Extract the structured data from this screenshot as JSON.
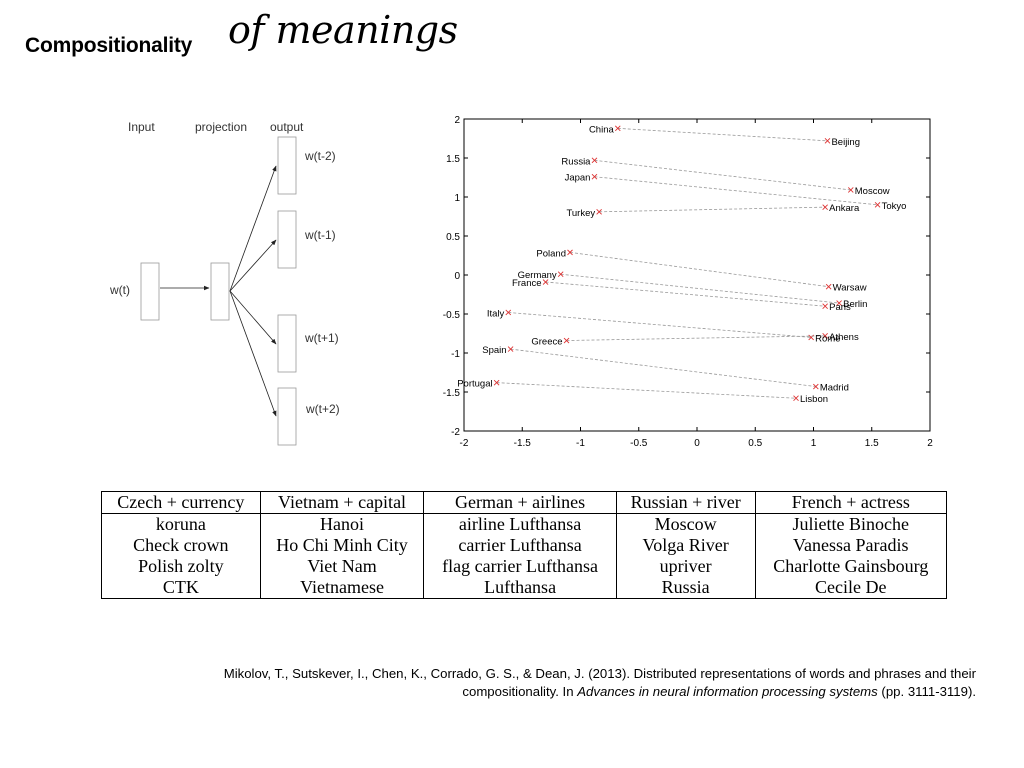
{
  "title": {
    "bold": "Compositionality",
    "script": "of meanings"
  },
  "diagram": {
    "labels": {
      "input": "Input",
      "projection": "projection",
      "output": "output",
      "input_word": "w(t)"
    },
    "outputs": [
      "w(t-2)",
      "w(t-1)",
      "w(t+1)",
      "w(t+2)"
    ]
  },
  "chart_data": {
    "type": "scatter",
    "xlim": [
      -2,
      2
    ],
    "ylim": [
      -2,
      2
    ],
    "xticks": [
      "-2",
      "-1.5",
      "-1",
      "-0.5",
      "0",
      "0.5",
      "1",
      "1.5",
      "2"
    ],
    "yticks": [
      "2",
      "1.5",
      "1",
      "0.5",
      "0",
      "-0.5",
      "-1",
      "-1.5",
      "-2"
    ],
    "grid": false,
    "pairs": [
      {
        "country": "China",
        "cx": -0.68,
        "cy": 1.88,
        "capital": "Beijing",
        "kx": 1.12,
        "ky": 1.72
      },
      {
        "country": "Russia",
        "cx": -0.88,
        "cy": 1.47,
        "capital": "Moscow",
        "kx": 1.32,
        "ky": 1.09
      },
      {
        "country": "Japan",
        "cx": -0.88,
        "cy": 1.26,
        "capital": "Tokyo",
        "kx": 1.55,
        "ky": 0.9
      },
      {
        "country": "Turkey",
        "cx": -0.84,
        "cy": 0.81,
        "capital": "Ankara",
        "kx": 1.1,
        "ky": 0.87
      },
      {
        "country": "Poland",
        "cx": -1.09,
        "cy": 0.29,
        "capital": "Warsaw",
        "kx": 1.13,
        "ky": -0.15
      },
      {
        "country": "Germany",
        "cx": -1.17,
        "cy": 0.01,
        "capital": "Berlin",
        "kx": 1.22,
        "ky": -0.36
      },
      {
        "country": "France",
        "cx": -1.3,
        "cy": -0.09,
        "capital": "Paris",
        "kx": 1.1,
        "ky": -0.4
      },
      {
        "country": "Italy",
        "cx": -1.62,
        "cy": -0.48,
        "capital": "Rome",
        "kx": 0.98,
        "ky": -0.8
      },
      {
        "country": "Greece",
        "cx": -1.12,
        "cy": -0.84,
        "capital": "Athens",
        "kx": 1.1,
        "ky": -0.78
      },
      {
        "country": "Spain",
        "cx": -1.6,
        "cy": -0.95,
        "capital": "Madrid",
        "kx": 1.02,
        "ky": -1.43
      },
      {
        "country": "Portugal",
        "cx": -1.72,
        "cy": -1.38,
        "capital": "Lisbon",
        "kx": 0.85,
        "ky": -1.58
      }
    ]
  },
  "table": {
    "headers": [
      "Czech + currency",
      "Vietnam + capital",
      "German + airlines",
      "Russian + river",
      "French + actress"
    ],
    "rows": [
      [
        "koruna",
        "Hanoi",
        "airline Lufthansa",
        "Moscow",
        "Juliette Binoche"
      ],
      [
        "Check crown",
        "Ho Chi Minh City",
        "carrier Lufthansa",
        "Volga River",
        "Vanessa Paradis"
      ],
      [
        "Polish zolty",
        "Viet Nam",
        "flag carrier Lufthansa",
        "upriver",
        "Charlotte Gainsbourg"
      ],
      [
        "CTK",
        "Vietnamese",
        "Lufthansa",
        "Russia",
        "Cecile De"
      ]
    ]
  },
  "citation": {
    "part1": "Mikolov, T., Sutskever, I., Chen, K., Corrado, G. S., & Dean, J. (2013). Distributed representations of words and phrases and their compositionality. In ",
    "journal": "Advances in neural information processing systems",
    "part2": " (pp. 3111-3119)."
  }
}
